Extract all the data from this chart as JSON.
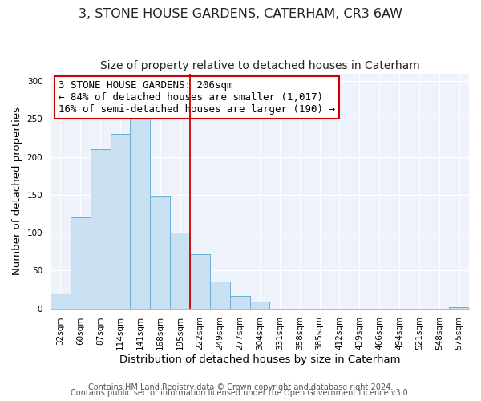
{
  "title": "3, STONE HOUSE GARDENS, CATERHAM, CR3 6AW",
  "subtitle": "Size of property relative to detached houses in Caterham",
  "xlabel": "Distribution of detached houses by size in Caterham",
  "ylabel": "Number of detached properties",
  "bar_labels": [
    "32sqm",
    "60sqm",
    "87sqm",
    "114sqm",
    "141sqm",
    "168sqm",
    "195sqm",
    "222sqm",
    "249sqm",
    "277sqm",
    "304sqm",
    "331sqm",
    "358sqm",
    "385sqm",
    "412sqm",
    "439sqm",
    "466sqm",
    "494sqm",
    "521sqm",
    "548sqm",
    "575sqm"
  ],
  "bar_values": [
    20,
    120,
    210,
    230,
    250,
    148,
    100,
    72,
    36,
    16,
    9,
    0,
    0,
    0,
    0,
    0,
    0,
    0,
    0,
    0,
    2
  ],
  "bar_color": "#c9dff2",
  "bar_edgecolor": "#6aaed6",
  "vline_x": 6.5,
  "vline_color": "#cc0000",
  "annotation_text": "3 STONE HOUSE GARDENS: 206sqm\n← 84% of detached houses are smaller (1,017)\n16% of semi-detached houses are larger (190) →",
  "annotation_box_edgecolor": "#cc0000",
  "annotation_box_facecolor": "#ffffff",
  "ylim": [
    0,
    310
  ],
  "yticks": [
    0,
    50,
    100,
    150,
    200,
    250,
    300
  ],
  "footer_line1": "Contains HM Land Registry data © Crown copyright and database right 2024.",
  "footer_line2": "Contains public sector information licensed under the Open Government Licence v3.0.",
  "bg_color": "#ffffff",
  "plot_bg_color": "#eef3fb",
  "title_fontsize": 11.5,
  "subtitle_fontsize": 10,
  "axis_label_fontsize": 9.5,
  "tick_fontsize": 7.5,
  "annotation_fontsize": 9,
  "footer_fontsize": 7
}
